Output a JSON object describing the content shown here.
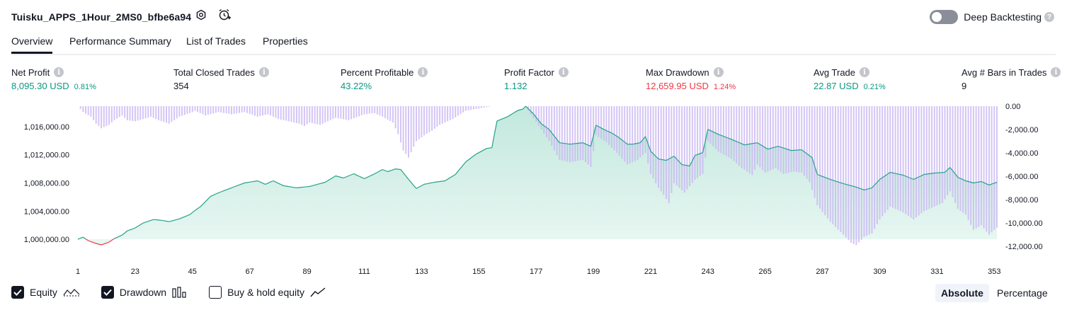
{
  "header": {
    "strategy_name": "Tuisku_APPS_1Hour_2MS0_bfbe6a94",
    "settings_icon": "gear-icon",
    "alert_icon": "add-alert-icon",
    "deep_backtesting_label": "Deep Backtesting",
    "deep_backtesting_enabled": false
  },
  "tabs": [
    {
      "label": "Overview",
      "active": true
    },
    {
      "label": "Performance Summary",
      "active": false
    },
    {
      "label": "List of Trades",
      "active": false
    },
    {
      "label": "Properties",
      "active": false
    }
  ],
  "metrics": {
    "net_profit": {
      "label": "Net Profit",
      "value": "8,095.30 USD",
      "sub": "0.81%"
    },
    "total_closed_trades": {
      "label": "Total Closed Trades",
      "value": "354"
    },
    "percent_profitable": {
      "label": "Percent Profitable",
      "value": "43.22%"
    },
    "profit_factor": {
      "label": "Profit Factor",
      "value": "1.132"
    },
    "max_drawdown": {
      "label": "Max Drawdown",
      "value": "12,659.95 USD",
      "sub": "1.24%"
    },
    "avg_trade": {
      "label": "Avg Trade",
      "value": "22.87 USD",
      "sub": "0.21%"
    },
    "avg_bars": {
      "label": "Avg # Bars in Trades",
      "value": "9"
    }
  },
  "colors": {
    "positive": "#089981",
    "negative": "#f23645",
    "equity_line": "#22a187",
    "equity_fill": "#bfe7db",
    "drawdown_bar": "#c9b6f2"
  },
  "legend": {
    "equity": {
      "label": "Equity",
      "checked": true
    },
    "drawdown": {
      "label": "Drawdown",
      "checked": true
    },
    "buy_hold": {
      "label": "Buy & hold equity",
      "checked": false
    }
  },
  "view_modes": {
    "absolute": "Absolute",
    "percentage": "Percentage",
    "active": "Absolute"
  },
  "chart_data": {
    "type": "area",
    "x_axis": {
      "ticks": [
        "1",
        "23",
        "45",
        "67",
        "89",
        "111",
        "133",
        "155",
        "177",
        "199",
        "221",
        "243",
        "265",
        "287",
        "309",
        "331",
        "353"
      ],
      "range": [
        1,
        354
      ]
    },
    "left_axis": {
      "ticks": [
        "1,000,000.00",
        "1,004,000.00",
        "1,008,000.00",
        "1,012,000.00",
        "1,016,000.00"
      ],
      "range": [
        999000,
        1018900
      ]
    },
    "right_axis": {
      "ticks": [
        "0.00",
        "-2,000.00",
        "-4,000.00",
        "-6,000.00",
        "-8,000.00",
        "-10,000.00",
        "-12,000.00"
      ],
      "range": [
        -12000,
        0
      ]
    },
    "series": [
      {
        "name": "Equity",
        "axis": "left",
        "anchors": [
          [
            1,
            1000000
          ],
          [
            3,
            1000300
          ],
          [
            5,
            999800
          ],
          [
            8,
            999400
          ],
          [
            10,
            999200
          ],
          [
            13,
            999600
          ],
          [
            15,
            1000100
          ],
          [
            18,
            1000600
          ],
          [
            20,
            1001200
          ],
          [
            23,
            1001600
          ],
          [
            26,
            1002300
          ],
          [
            30,
            1002800
          ],
          [
            33,
            1002700
          ],
          [
            36,
            1002500
          ],
          [
            40,
            1002900
          ],
          [
            44,
            1003500
          ],
          [
            46,
            1004100
          ],
          [
            48,
            1004600
          ],
          [
            52,
            1006100
          ],
          [
            55,
            1006600
          ],
          [
            60,
            1007300
          ],
          [
            65,
            1008000
          ],
          [
            70,
            1008300
          ],
          [
            73,
            1007800
          ],
          [
            76,
            1008300
          ],
          [
            80,
            1007600
          ],
          [
            85,
            1007300
          ],
          [
            90,
            1007500
          ],
          [
            96,
            1008100
          ],
          [
            100,
            1009000
          ],
          [
            103,
            1008700
          ],
          [
            107,
            1009300
          ],
          [
            111,
            1008600
          ],
          [
            115,
            1009300
          ],
          [
            118,
            1009900
          ],
          [
            120,
            1009600
          ],
          [
            123,
            1010000
          ],
          [
            125,
            1009900
          ],
          [
            128,
            1008500
          ],
          [
            131,
            1007200
          ],
          [
            134,
            1007800
          ],
          [
            138,
            1008100
          ],
          [
            142,
            1008300
          ],
          [
            146,
            1009200
          ],
          [
            150,
            1011000
          ],
          [
            154,
            1012100
          ],
          [
            158,
            1012900
          ],
          [
            160,
            1013000
          ],
          [
            162,
            1016800
          ],
          [
            166,
            1017400
          ],
          [
            170,
            1018300
          ],
          [
            172,
            1018500
          ],
          [
            173,
            1018900
          ],
          [
            176,
            1017800
          ],
          [
            179,
            1016400
          ],
          [
            182,
            1015600
          ],
          [
            186,
            1013700
          ],
          [
            190,
            1013500
          ],
          [
            195,
            1013700
          ],
          [
            198,
            1013200
          ],
          [
            200,
            1016200
          ],
          [
            203,
            1015600
          ],
          [
            206,
            1015100
          ],
          [
            209,
            1014400
          ],
          [
            212,
            1013500
          ],
          [
            214,
            1013500
          ],
          [
            217,
            1013700
          ],
          [
            219,
            1014600
          ],
          [
            221,
            1012500
          ],
          [
            224,
            1011400
          ],
          [
            227,
            1011200
          ],
          [
            230,
            1011800
          ],
          [
            233,
            1010600
          ],
          [
            236,
            1010400
          ],
          [
            238,
            1011900
          ],
          [
            241,
            1012300
          ],
          [
            243,
            1015600
          ],
          [
            247,
            1014900
          ],
          [
            252,
            1014200
          ],
          [
            257,
            1013400
          ],
          [
            262,
            1013700
          ],
          [
            266,
            1012800
          ],
          [
            270,
            1013200
          ],
          [
            275,
            1012600
          ],
          [
            279,
            1012700
          ],
          [
            283,
            1011600
          ],
          [
            285,
            1009200
          ],
          [
            290,
            1008500
          ],
          [
            295,
            1007900
          ],
          [
            300,
            1007400
          ],
          [
            303,
            1007000
          ],
          [
            306,
            1007300
          ],
          [
            309,
            1008500
          ],
          [
            313,
            1009500
          ],
          [
            318,
            1009100
          ],
          [
            322,
            1008500
          ],
          [
            326,
            1009200
          ],
          [
            330,
            1009400
          ],
          [
            334,
            1009500
          ],
          [
            336,
            1010200
          ],
          [
            339,
            1008800
          ],
          [
            342,
            1008300
          ],
          [
            345,
            1008000
          ],
          [
            348,
            1008200
          ],
          [
            351,
            1007700
          ],
          [
            354,
            1008100
          ]
        ]
      },
      {
        "name": "Drawdown",
        "axis": "right",
        "anchors": [
          [
            1,
            0
          ],
          [
            3,
            -500
          ],
          [
            6,
            -900
          ],
          [
            8,
            -1500
          ],
          [
            10,
            -1900
          ],
          [
            13,
            -1600
          ],
          [
            15,
            -1200
          ],
          [
            18,
            -800
          ],
          [
            20,
            -1200
          ],
          [
            23,
            -1300
          ],
          [
            26,
            -1100
          ],
          [
            29,
            -900
          ],
          [
            32,
            -1200
          ],
          [
            36,
            -1500
          ],
          [
            40,
            -900
          ],
          [
            44,
            -600
          ],
          [
            46,
            -400
          ],
          [
            50,
            -800
          ],
          [
            55,
            -500
          ],
          [
            60,
            -700
          ],
          [
            65,
            -500
          ],
          [
            70,
            -900
          ],
          [
            74,
            -700
          ],
          [
            78,
            -1100
          ],
          [
            82,
            -1300
          ],
          [
            86,
            -1500
          ],
          [
            88,
            -1700
          ],
          [
            90,
            -1400
          ],
          [
            94,
            -1600
          ],
          [
            100,
            -1000
          ],
          [
            105,
            -1200
          ],
          [
            111,
            -700
          ],
          [
            115,
            -600
          ],
          [
            118,
            -900
          ],
          [
            122,
            -1400
          ],
          [
            124,
            -2400
          ],
          [
            126,
            -3800
          ],
          [
            128,
            -4400
          ],
          [
            131,
            -3000
          ],
          [
            134,
            -2500
          ],
          [
            137,
            -2100
          ],
          [
            140,
            -1600
          ],
          [
            145,
            -1100
          ],
          [
            150,
            -400
          ],
          [
            155,
            -200
          ],
          [
            160,
            0
          ],
          [
            165,
            0
          ],
          [
            170,
            0
          ],
          [
            173,
            0
          ],
          [
            175,
            -700
          ],
          [
            179,
            -2000
          ],
          [
            182,
            -3000
          ],
          [
            186,
            -4600
          ],
          [
            190,
            -4800
          ],
          [
            195,
            -4600
          ],
          [
            198,
            -5200
          ],
          [
            200,
            -2500
          ],
          [
            204,
            -3100
          ],
          [
            208,
            -4000
          ],
          [
            212,
            -5000
          ],
          [
            216,
            -4600
          ],
          [
            219,
            -4000
          ],
          [
            221,
            -5800
          ],
          [
            224,
            -7000
          ],
          [
            226,
            -7600
          ],
          [
            228,
            -8300
          ],
          [
            230,
            -6600
          ],
          [
            234,
            -7400
          ],
          [
            238,
            -6300
          ],
          [
            241,
            -5800
          ],
          [
            243,
            -3000
          ],
          [
            247,
            -3900
          ],
          [
            252,
            -4500
          ],
          [
            256,
            -5300
          ],
          [
            260,
            -5900
          ],
          [
            262,
            -5000
          ],
          [
            265,
            -5700
          ],
          [
            269,
            -5300
          ],
          [
            272,
            -5800
          ],
          [
            276,
            -5600
          ],
          [
            279,
            -5700
          ],
          [
            282,
            -6500
          ],
          [
            285,
            -8500
          ],
          [
            290,
            -9900
          ],
          [
            295,
            -11000
          ],
          [
            298,
            -11700
          ],
          [
            300,
            -11900
          ],
          [
            303,
            -11200
          ],
          [
            306,
            -10900
          ],
          [
            309,
            -9700
          ],
          [
            313,
            -8600
          ],
          [
            318,
            -9100
          ],
          [
            322,
            -9700
          ],
          [
            326,
            -9000
          ],
          [
            330,
            -8600
          ],
          [
            333,
            -8300
          ],
          [
            336,
            -7300
          ],
          [
            339,
            -8800
          ],
          [
            342,
            -9300
          ],
          [
            345,
            -10600
          ],
          [
            348,
            -10200
          ],
          [
            351,
            -11000
          ],
          [
            354,
            -10400
          ]
        ]
      }
    ],
    "grid": false
  }
}
